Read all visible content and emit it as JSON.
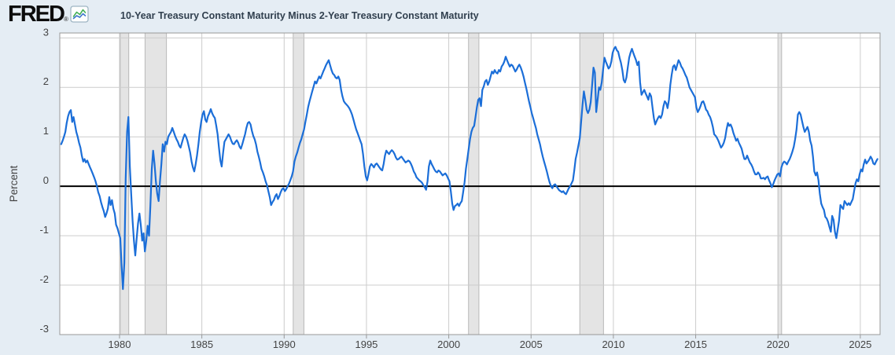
{
  "header": {
    "logo_text": "FRED",
    "registered_mark": "®",
    "legend_label": "10-Year Treasury Constant Maturity Minus 2-Year Treasury Constant Maturity"
  },
  "colors": {
    "page_background": "#e5edf4",
    "plot_background": "#ffffff",
    "series_line": "#1b6ed8",
    "zero_line": "#000000",
    "gridline": "#cccccc",
    "plot_border": "#999999",
    "recession_fill": "#e4e4e4",
    "recession_edge": "#b8b8b8",
    "tick_label": "#444444",
    "title_text": "#31404f",
    "icon_green": "#45b058",
    "icon_blue": "#3b76cc"
  },
  "chart_data": {
    "type": "line",
    "title": "10-Year Treasury Constant Maturity Minus 2-Year Treasury Constant Maturity",
    "ylabel": "Percent",
    "xlabel": "",
    "xlim": [
      1976.37,
      2026.2
    ],
    "ylim": [
      -3.0,
      3.1
    ],
    "x_ticks": [
      1980,
      1985,
      1990,
      1995,
      2000,
      2005,
      2010,
      2015,
      2020,
      2025
    ],
    "y_ticks": [
      -3,
      -2,
      -1,
      0,
      1,
      2,
      3
    ],
    "grid": true,
    "zero_line": true,
    "legend_position": "top-left",
    "recession_bands": [
      [
        1980.04,
        1980.56
      ],
      [
        1981.55,
        1982.85
      ],
      [
        1990.55,
        1991.2
      ],
      [
        2001.2,
        2001.83
      ],
      [
        2007.96,
        2009.4
      ],
      [
        2020.0,
        2020.22
      ]
    ],
    "series": [
      {
        "name": "10-Year Treasury Constant Maturity Minus 2-Year Treasury Constant Maturity",
        "color": "#1b6ed8",
        "units": "Percent",
        "frequency": "monthly",
        "start_year": 1976,
        "start_month": 6,
        "values": [
          0.85,
          0.92,
          1.0,
          1.1,
          1.28,
          1.42,
          1.5,
          1.54,
          1.3,
          1.4,
          1.25,
          1.1,
          1.0,
          0.88,
          0.78,
          0.62,
          0.5,
          0.55,
          0.48,
          0.52,
          0.45,
          0.38,
          0.32,
          0.25,
          0.18,
          0.1,
          0.0,
          -0.12,
          -0.2,
          -0.32,
          -0.42,
          -0.5,
          -0.62,
          -0.55,
          -0.45,
          -0.22,
          -0.38,
          -0.28,
          -0.45,
          -0.55,
          -0.78,
          -0.85,
          -0.95,
          -1.05,
          -1.6,
          -2.08,
          -1.55,
          0.15,
          1.1,
          1.4,
          0.4,
          -0.15,
          -0.7,
          -1.1,
          -1.4,
          -1.05,
          -0.75,
          -0.55,
          -0.78,
          -1.1,
          -0.95,
          -1.32,
          -1.1,
          -0.8,
          -1.0,
          -0.4,
          0.35,
          0.72,
          0.45,
          0.1,
          -0.15,
          -0.3,
          0.1,
          0.45,
          0.85,
          0.7,
          0.9,
          0.85,
          1.0,
          1.05,
          1.1,
          1.18,
          1.1,
          1.02,
          0.95,
          0.9,
          0.82,
          0.78,
          0.88,
          0.98,
          1.05,
          1.0,
          0.92,
          0.8,
          0.68,
          0.5,
          0.38,
          0.3,
          0.45,
          0.62,
          0.85,
          1.1,
          1.3,
          1.45,
          1.52,
          1.35,
          1.3,
          1.42,
          1.48,
          1.56,
          1.48,
          1.42,
          1.38,
          1.22,
          1.05,
          0.78,
          0.52,
          0.4,
          0.68,
          0.9,
          0.95,
          1.0,
          1.05,
          1.0,
          0.92,
          0.86,
          0.85,
          0.9,
          0.93,
          0.88,
          0.8,
          0.76,
          0.85,
          0.95,
          1.05,
          1.18,
          1.28,
          1.3,
          1.25,
          1.12,
          1.02,
          0.95,
          0.85,
          0.7,
          0.6,
          0.48,
          0.35,
          0.28,
          0.2,
          0.1,
          0.02,
          -0.1,
          -0.22,
          -0.38,
          -0.32,
          -0.28,
          -0.2,
          -0.16,
          -0.26,
          -0.2,
          -0.12,
          -0.06,
          -0.04,
          -0.1,
          -0.06,
          0.0,
          0.05,
          0.12,
          0.2,
          0.3,
          0.5,
          0.6,
          0.68,
          0.78,
          0.88,
          0.95,
          1.05,
          1.15,
          1.3,
          1.45,
          1.6,
          1.72,
          1.82,
          1.92,
          2.02,
          2.12,
          2.08,
          2.15,
          2.22,
          2.18,
          2.25,
          2.32,
          2.38,
          2.45,
          2.5,
          2.55,
          2.45,
          2.35,
          2.28,
          2.25,
          2.2,
          2.18,
          2.22,
          2.15,
          1.95,
          1.82,
          1.72,
          1.68,
          1.65,
          1.62,
          1.58,
          1.52,
          1.45,
          1.35,
          1.25,
          1.15,
          1.08,
          1.0,
          0.92,
          0.85,
          0.65,
          0.4,
          0.2,
          0.12,
          0.25,
          0.4,
          0.45,
          0.42,
          0.38,
          0.44,
          0.46,
          0.42,
          0.38,
          0.34,
          0.32,
          0.45,
          0.62,
          0.72,
          0.68,
          0.65,
          0.7,
          0.73,
          0.7,
          0.65,
          0.58,
          0.54,
          0.55,
          0.58,
          0.6,
          0.56,
          0.52,
          0.48,
          0.5,
          0.52,
          0.5,
          0.45,
          0.38,
          0.3,
          0.25,
          0.18,
          0.15,
          0.12,
          0.1,
          0.07,
          0.02,
          -0.02,
          -0.07,
          0.1,
          0.4,
          0.52,
          0.45,
          0.4,
          0.34,
          0.3,
          0.28,
          0.32,
          0.3,
          0.26,
          0.22,
          0.24,
          0.26,
          0.22,
          0.16,
          0.1,
          -0.1,
          -0.35,
          -0.48,
          -0.4,
          -0.38,
          -0.35,
          -0.4,
          -0.34,
          -0.3,
          -0.12,
          0.08,
          0.35,
          0.55,
          0.75,
          0.95,
          1.1,
          1.18,
          1.22,
          1.4,
          1.6,
          1.75,
          1.78,
          1.62,
          1.95,
          2.02,
          2.12,
          2.15,
          2.05,
          2.12,
          2.22,
          2.32,
          2.28,
          2.35,
          2.3,
          2.28,
          2.35,
          2.32,
          2.42,
          2.46,
          2.52,
          2.62,
          2.55,
          2.48,
          2.42,
          2.46,
          2.44,
          2.38,
          2.32,
          2.36,
          2.42,
          2.46,
          2.4,
          2.32,
          2.22,
          2.1,
          1.98,
          1.85,
          1.72,
          1.6,
          1.48,
          1.38,
          1.28,
          1.18,
          1.05,
          0.95,
          0.85,
          0.72,
          0.6,
          0.5,
          0.4,
          0.3,
          0.18,
          0.08,
          0.0,
          -0.04,
          0.02,
          0.04,
          0.0,
          -0.04,
          -0.08,
          -0.1,
          -0.12,
          -0.1,
          -0.14,
          -0.16,
          -0.1,
          -0.04,
          0.0,
          0.06,
          0.12,
          0.32,
          0.55,
          0.68,
          0.82,
          0.97,
          1.3,
          1.65,
          1.92,
          1.75,
          1.55,
          1.48,
          1.55,
          1.7,
          2.05,
          2.4,
          2.3,
          1.5,
          1.75,
          2.0,
          1.95,
          2.1,
          2.35,
          2.6,
          2.52,
          2.45,
          2.38,
          2.42,
          2.52,
          2.7,
          2.78,
          2.82,
          2.75,
          2.72,
          2.6,
          2.5,
          2.35,
          2.15,
          2.1,
          2.2,
          2.4,
          2.6,
          2.7,
          2.78,
          2.7,
          2.62,
          2.55,
          2.45,
          2.52,
          2.1,
          1.85,
          1.9,
          1.95,
          1.88,
          1.82,
          1.75,
          1.88,
          1.82,
          1.6,
          1.38,
          1.25,
          1.32,
          1.38,
          1.42,
          1.38,
          1.45,
          1.62,
          1.72,
          1.68,
          1.58,
          1.75,
          2.05,
          2.25,
          2.42,
          2.45,
          2.35,
          2.45,
          2.55,
          2.5,
          2.42,
          2.38,
          2.32,
          2.25,
          2.2,
          2.1,
          2.0,
          1.95,
          1.9,
          1.85,
          1.8,
          1.6,
          1.5,
          1.55,
          1.62,
          1.7,
          1.72,
          1.65,
          1.55,
          1.52,
          1.45,
          1.4,
          1.32,
          1.2,
          1.05,
          1.02,
          0.98,
          0.92,
          0.85,
          0.78,
          0.82,
          0.88,
          0.98,
          1.15,
          1.28,
          1.22,
          1.25,
          1.18,
          1.08,
          1.0,
          0.92,
          0.96,
          0.88,
          0.82,
          0.76,
          0.65,
          0.55,
          0.55,
          0.62,
          0.55,
          0.48,
          0.44,
          0.38,
          0.3,
          0.24,
          0.24,
          0.28,
          0.24,
          0.16,
          0.16,
          0.17,
          0.14,
          0.18,
          0.2,
          0.12,
          0.06,
          -0.02,
          0.04,
          0.12,
          0.18,
          0.24,
          0.26,
          0.2,
          0.38,
          0.46,
          0.5,
          0.48,
          0.44,
          0.5,
          0.55,
          0.62,
          0.7,
          0.8,
          0.95,
          1.15,
          1.45,
          1.5,
          1.45,
          1.32,
          1.2,
          1.1,
          1.15,
          1.2,
          1.1,
          0.92,
          0.82,
          0.6,
          0.3,
          0.22,
          0.28,
          0.12,
          -0.15,
          -0.35,
          -0.42,
          -0.48,
          -0.62,
          -0.65,
          -0.72,
          -0.82,
          -0.92,
          -0.6,
          -0.68,
          -0.92,
          -1.05,
          -0.88,
          -0.7,
          -0.38,
          -0.42,
          -0.46,
          -0.3,
          -0.34,
          -0.38,
          -0.34,
          -0.38,
          -0.32,
          -0.26,
          -0.1,
          0.06,
          0.14,
          0.1,
          0.24,
          0.34,
          0.3,
          0.44,
          0.54,
          0.46,
          0.5,
          0.54,
          0.6,
          0.55,
          0.46,
          0.44,
          0.5,
          0.55
        ]
      }
    ]
  }
}
